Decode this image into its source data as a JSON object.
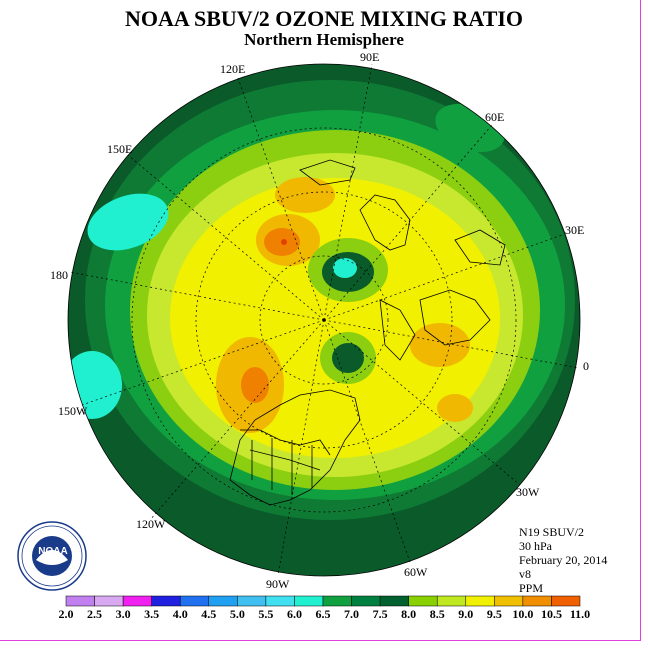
{
  "header": {
    "title": "NOAA SBUV/2 OZONE MIXING RATIO",
    "subtitle": "Northern Hemisphere"
  },
  "longitude_labels": [
    "90E",
    "60E",
    "30E",
    "0",
    "30W",
    "60W",
    "90W",
    "120W",
    "150W",
    "180",
    "150E",
    "120E"
  ],
  "info": {
    "satellite": "N19 SBUV/2",
    "level": "30 hPa",
    "date": "February 20, 2014",
    "version": "v8",
    "units": "PPM"
  },
  "logo": {
    "text": "NOAA",
    "ring_text": "NATIONAL OCEANIC AND ATMOSPHERIC ADMINISTRATION · U.S. DEPARTMENT OF COMMERCE"
  },
  "colorbar": {
    "ticks": [
      "2.0",
      "2.5",
      "3.0",
      "3.5",
      "4.0",
      "4.5",
      "5.0",
      "5.5",
      "6.0",
      "6.5",
      "7.0",
      "7.5",
      "8.0",
      "8.5",
      "9.0",
      "9.5",
      "10.0",
      "10.5",
      "11.0"
    ],
    "colors": [
      "#c080f0",
      "#d8a8f0",
      "#f020f0",
      "#2020e0",
      "#2070f0",
      "#20a0f0",
      "#40c0f0",
      "#40e0f0",
      "#20f0d0",
      "#10a040",
      "#008040",
      "#006030",
      "#88d000",
      "#c0e820",
      "#f0f000",
      "#f0c000",
      "#f09000",
      "#f06000",
      "#e00000",
      "#a05030"
    ]
  },
  "map_colors": {
    "edge": "#0a5a2a",
    "dark_green": "#0e7a34",
    "green": "#10a040",
    "light_green": "#8ccf10",
    "yellow_green": "#c8e830",
    "yellow": "#f0f000",
    "orange": "#f0b800",
    "dark_orange": "#f08000",
    "red": "#e04000",
    "cyan": "#20f0d0"
  }
}
